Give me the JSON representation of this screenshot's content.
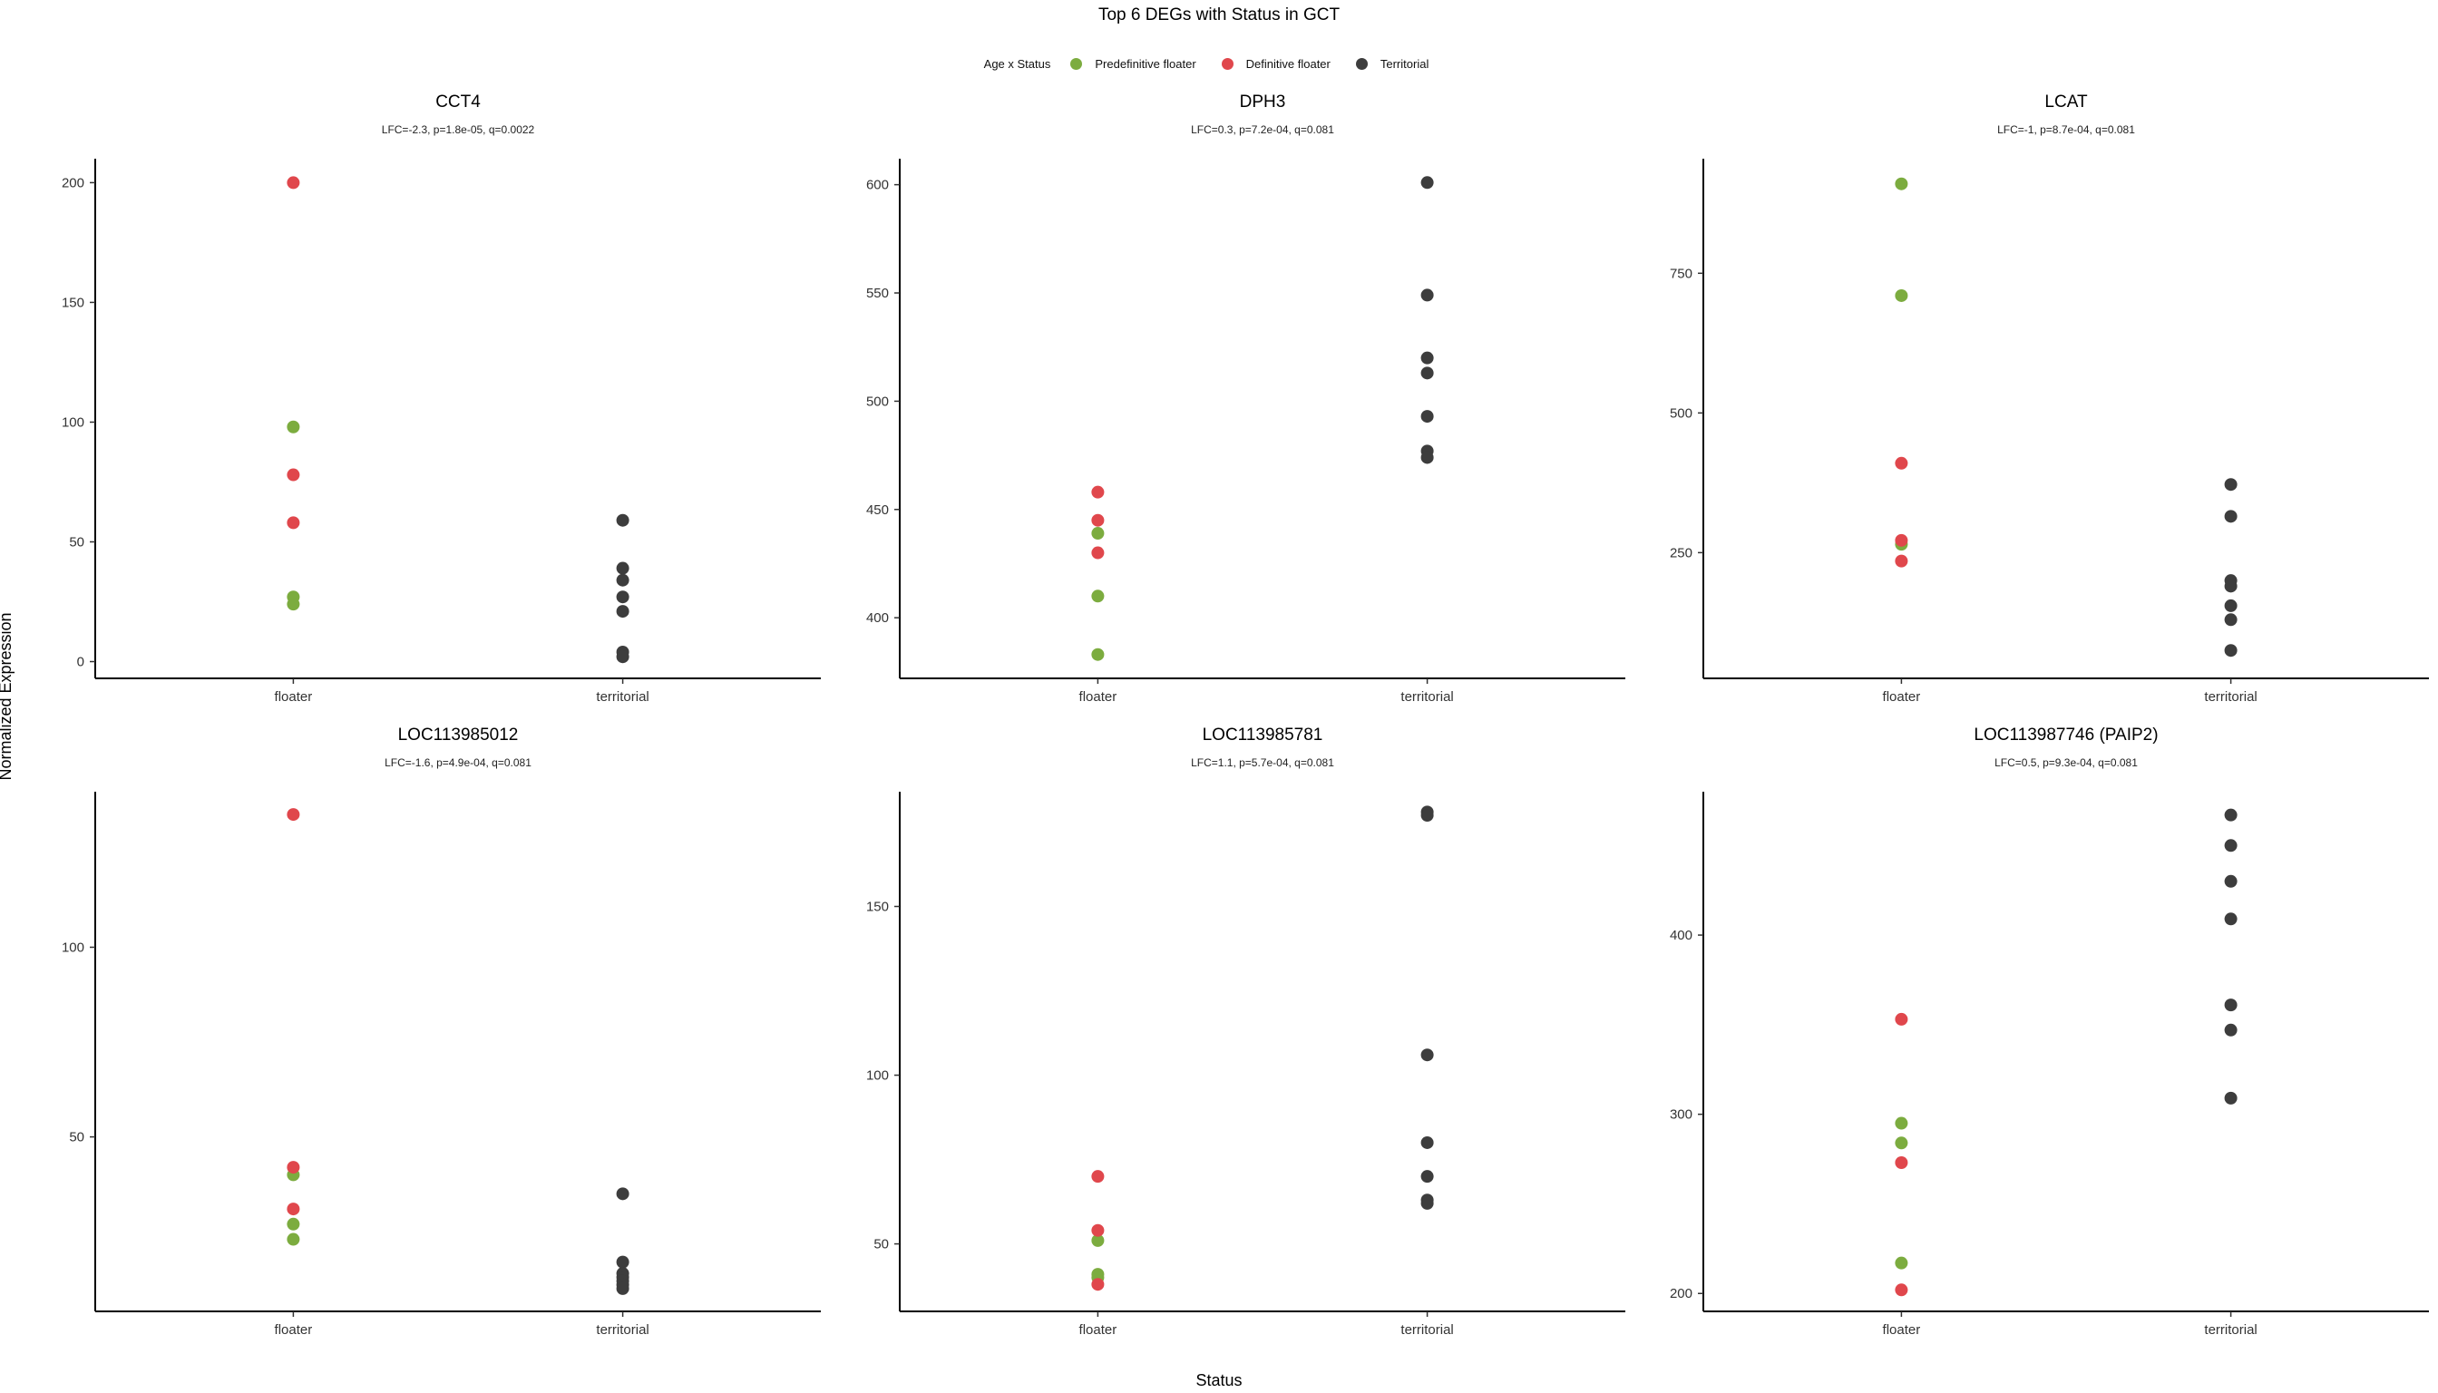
{
  "figure": {
    "title": "Top 6 DEGs with Status in GCT",
    "ylabel": "Normalized Expression",
    "xlabel": "Status"
  },
  "legend": {
    "title": "Age x Status",
    "items": [
      {
        "label": "Predefinitive floater",
        "color": "#7cac3f"
      },
      {
        "label": "Definitive floater",
        "color": "#e0474c"
      },
      {
        "label": "Territorial",
        "color": "#3d3d3d"
      }
    ]
  },
  "chart_data": [
    {
      "type": "scatter",
      "title": "CCT4",
      "subtitle": "LFC=-2.3, p=1.8e-05, q=0.0022",
      "categories": [
        "floater",
        "territorial"
      ],
      "yticks": [
        0,
        50,
        100,
        150,
        200
      ],
      "ylim": [
        -7,
        210
      ],
      "series": [
        {
          "name": "Predefinitive floater",
          "color": "#7cac3f",
          "points": [
            [
              "floater",
              98
            ],
            [
              "floater",
              27
            ],
            [
              "floater",
              24
            ]
          ]
        },
        {
          "name": "Definitive floater",
          "color": "#e0474c",
          "points": [
            [
              "floater",
              200
            ],
            [
              "floater",
              78
            ],
            [
              "floater",
              58
            ]
          ]
        },
        {
          "name": "Territorial",
          "color": "#3d3d3d",
          "points": [
            [
              "territorial",
              59
            ],
            [
              "territorial",
              39
            ],
            [
              "territorial",
              34
            ],
            [
              "territorial",
              27
            ],
            [
              "territorial",
              21
            ],
            [
              "territorial",
              4
            ],
            [
              "territorial",
              2
            ]
          ]
        }
      ]
    },
    {
      "type": "scatter",
      "title": "DPH3",
      "subtitle": "LFC=0.3, p=7.2e-04, q=0.081",
      "categories": [
        "floater",
        "territorial"
      ],
      "yticks": [
        400,
        450,
        500,
        550,
        600
      ],
      "ylim": [
        372,
        612
      ],
      "series": [
        {
          "name": "Predefinitive floater",
          "color": "#7cac3f",
          "points": [
            [
              "floater",
              439
            ],
            [
              "floater",
              410
            ],
            [
              "floater",
              383
            ]
          ]
        },
        {
          "name": "Definitive floater",
          "color": "#e0474c",
          "points": [
            [
              "floater",
              458
            ],
            [
              "floater",
              445
            ],
            [
              "floater",
              430
            ]
          ]
        },
        {
          "name": "Territorial",
          "color": "#3d3d3d",
          "points": [
            [
              "territorial",
              601
            ],
            [
              "territorial",
              549
            ],
            [
              "territorial",
              520
            ],
            [
              "territorial",
              513
            ],
            [
              "territorial",
              493
            ],
            [
              "territorial",
              477
            ],
            [
              "territorial",
              474
            ]
          ]
        }
      ]
    },
    {
      "type": "scatter",
      "title": "LCAT",
      "subtitle": "LFC=-1, p=8.7e-04, q=0.081",
      "categories": [
        "floater",
        "territorial"
      ],
      "yticks": [
        250,
        500,
        750
      ],
      "ylim": [
        25,
        955
      ],
      "series": [
        {
          "name": "Predefinitive floater",
          "color": "#7cac3f",
          "points": [
            [
              "floater",
              910
            ],
            [
              "floater",
              710
            ],
            [
              "floater",
              265
            ]
          ]
        },
        {
          "name": "Definitive floater",
          "color": "#e0474c",
          "points": [
            [
              "floater",
              410
            ],
            [
              "floater",
              272
            ],
            [
              "floater",
              235
            ]
          ]
        },
        {
          "name": "Territorial",
          "color": "#3d3d3d",
          "points": [
            [
              "territorial",
              372
            ],
            [
              "territorial",
              315
            ],
            [
              "territorial",
              200
            ],
            [
              "territorial",
              190
            ],
            [
              "territorial",
              155
            ],
            [
              "territorial",
              130
            ],
            [
              "territorial",
              75
            ]
          ]
        }
      ]
    },
    {
      "type": "scatter",
      "title": "LOC113985012",
      "subtitle": "LFC=-1.6, p=4.9e-04, q=0.081",
      "categories": [
        "floater",
        "territorial"
      ],
      "yticks": [
        50,
        100
      ],
      "ylim": [
        4,
        141
      ],
      "series": [
        {
          "name": "Predefinitive floater",
          "color": "#7cac3f",
          "points": [
            [
              "floater",
              40
            ],
            [
              "floater",
              27
            ],
            [
              "floater",
              23
            ]
          ]
        },
        {
          "name": "Definitive floater",
          "color": "#e0474c",
          "points": [
            [
              "floater",
              135
            ],
            [
              "floater",
              42
            ],
            [
              "floater",
              31
            ]
          ]
        },
        {
          "name": "Territorial",
          "color": "#3d3d3d",
          "points": [
            [
              "territorial",
              35
            ],
            [
              "territorial",
              17
            ],
            [
              "territorial",
              14
            ],
            [
              "territorial",
              13
            ],
            [
              "territorial",
              12
            ],
            [
              "territorial",
              11
            ],
            [
              "territorial",
              10
            ]
          ]
        }
      ]
    },
    {
      "type": "scatter",
      "title": "LOC113985781",
      "subtitle": "LFC=1.1, p=5.7e-04, q=0.081",
      "categories": [
        "floater",
        "territorial"
      ],
      "yticks": [
        50,
        100,
        150
      ],
      "ylim": [
        30,
        184
      ],
      "series": [
        {
          "name": "Predefinitive floater",
          "color": "#7cac3f",
          "points": [
            [
              "floater",
              51
            ],
            [
              "floater",
              41
            ],
            [
              "floater",
              40
            ]
          ]
        },
        {
          "name": "Definitive floater",
          "color": "#e0474c",
          "points": [
            [
              "floater",
              70
            ],
            [
              "floater",
              54
            ],
            [
              "floater",
              38
            ]
          ]
        },
        {
          "name": "Territorial",
          "color": "#3d3d3d",
          "points": [
            [
              "territorial",
              178
            ],
            [
              "territorial",
              177
            ],
            [
              "territorial",
              106
            ],
            [
              "territorial",
              80
            ],
            [
              "territorial",
              70
            ],
            [
              "territorial",
              63
            ],
            [
              "territorial",
              62
            ]
          ]
        }
      ]
    },
    {
      "type": "scatter",
      "title": "LOC113987746 (PAIP2)",
      "subtitle": "LFC=0.5, p=9.3e-04, q=0.081",
      "categories": [
        "floater",
        "territorial"
      ],
      "yticks": [
        200,
        300,
        400
      ],
      "ylim": [
        190,
        480
      ],
      "series": [
        {
          "name": "Predefinitive floater",
          "color": "#7cac3f",
          "points": [
            [
              "floater",
              295
            ],
            [
              "floater",
              284
            ],
            [
              "floater",
              217
            ]
          ]
        },
        {
          "name": "Definitive floater",
          "color": "#e0474c",
          "points": [
            [
              "floater",
              353
            ],
            [
              "floater",
              273
            ],
            [
              "floater",
              202
            ]
          ]
        },
        {
          "name": "Territorial",
          "color": "#3d3d3d",
          "points": [
            [
              "territorial",
              467
            ],
            [
              "territorial",
              450
            ],
            [
              "territorial",
              430
            ],
            [
              "territorial",
              409
            ],
            [
              "territorial",
              361
            ],
            [
              "territorial",
              347
            ],
            [
              "territorial",
              309
            ]
          ]
        }
      ]
    }
  ]
}
